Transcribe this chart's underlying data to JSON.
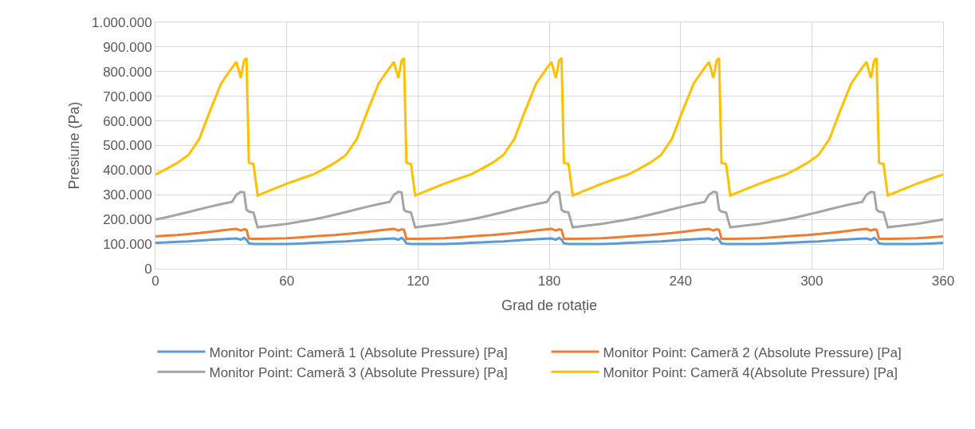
{
  "chart_data": {
    "type": "line",
    "xlabel": "Grad de rotație",
    "ylabel": "Presiune (Pa)",
    "x": [
      0,
      5,
      10,
      15,
      20,
      25,
      30,
      35,
      37,
      39,
      40.5,
      41.6,
      42.7,
      44.8,
      46.7,
      53,
      60,
      66,
      72,
      77,
      82,
      87,
      92,
      97,
      102,
      107,
      109,
      111,
      112.5,
      113.6,
      114.7,
      116.8,
      118.7,
      125,
      132,
      138,
      144,
      149,
      154,
      159,
      164,
      169,
      174,
      179,
      181,
      183,
      184.5,
      185.6,
      186.7,
      188.8,
      190.7,
      197,
      204,
      210,
      216,
      221,
      226,
      231,
      236,
      241,
      246,
      251,
      253,
      255,
      256.5,
      257.6,
      258.7,
      260.8,
      262.7,
      269,
      276,
      282,
      288,
      293,
      298,
      303,
      308,
      313,
      318,
      323,
      325,
      327,
      328.5,
      329.6,
      330.7,
      332.8,
      334.7,
      341,
      348,
      354,
      360
    ],
    "series": [
      {
        "name": "Monitor Point: Cameră 1 (Absolute Pressure) [Pa]",
        "color": "#5b9bd5",
        "values": [
          105000,
          107000,
          109000,
          111000,
          114000,
          117000,
          120000,
          122000,
          123000,
          118000,
          125000,
          118000,
          103000,
          100000,
          100000,
          100000,
          100000,
          102000,
          105000,
          107000,
          109000,
          111000,
          114000,
          117000,
          120000,
          122000,
          123000,
          118000,
          125000,
          118000,
          103000,
          100000,
          100000,
          100000,
          100000,
          102000,
          105000,
          107000,
          109000,
          111000,
          114000,
          117000,
          120000,
          122000,
          123000,
          118000,
          125000,
          118000,
          103000,
          100000,
          100000,
          100000,
          100000,
          102000,
          105000,
          107000,
          109000,
          111000,
          114000,
          117000,
          120000,
          122000,
          123000,
          118000,
          125000,
          118000,
          103000,
          100000,
          100000,
          100000,
          100000,
          102000,
          105000,
          107000,
          109000,
          111000,
          114000,
          117000,
          120000,
          122000,
          123000,
          118000,
          125000,
          118000,
          103000,
          100000,
          100000,
          100000,
          100000,
          102000,
          105000
        ]
      },
      {
        "name": "Monitor Point: Cameră 2 (Absolute Pressure) [Pa]",
        "color": "#ed7d31",
        "values": [
          131000,
          134000,
          137000,
          141000,
          145000,
          150000,
          155000,
          160000,
          162000,
          155000,
          160000,
          158000,
          122000,
          121000,
          121000,
          122000,
          124000,
          127000,
          131000,
          134000,
          137000,
          141000,
          145000,
          150000,
          155000,
          160000,
          162000,
          155000,
          160000,
          158000,
          122000,
          121000,
          121000,
          122000,
          124000,
          127000,
          131000,
          134000,
          137000,
          141000,
          145000,
          150000,
          155000,
          160000,
          162000,
          155000,
          160000,
          158000,
          122000,
          121000,
          121000,
          122000,
          124000,
          127000,
          131000,
          134000,
          137000,
          141000,
          145000,
          150000,
          155000,
          160000,
          162000,
          155000,
          160000,
          158000,
          122000,
          121000,
          121000,
          122000,
          124000,
          127000,
          131000,
          134000,
          137000,
          141000,
          145000,
          150000,
          155000,
          160000,
          162000,
          155000,
          160000,
          158000,
          122000,
          121000,
          121000,
          122000,
          124000,
          127000,
          131000
        ]
      },
      {
        "name": "Monitor Point: Cameră 3 (Absolute Pressure) [Pa]",
        "color": "#a5a5a5",
        "values": [
          200000,
          209000,
          219000,
          230000,
          241000,
          252000,
          262000,
          271000,
          300000,
          312000,
          310000,
          240000,
          232000,
          228000,
          168000,
          175000,
          182000,
          191000,
          200000,
          209000,
          219000,
          230000,
          241000,
          252000,
          262000,
          271000,
          300000,
          312000,
          310000,
          240000,
          232000,
          228000,
          168000,
          175000,
          182000,
          191000,
          200000,
          209000,
          219000,
          230000,
          241000,
          252000,
          262000,
          271000,
          300000,
          312000,
          310000,
          240000,
          232000,
          228000,
          168000,
          175000,
          182000,
          191000,
          200000,
          209000,
          219000,
          230000,
          241000,
          252000,
          262000,
          271000,
          300000,
          312000,
          310000,
          240000,
          232000,
          228000,
          168000,
          175000,
          182000,
          191000,
          200000,
          209000,
          219000,
          230000,
          241000,
          252000,
          262000,
          271000,
          300000,
          312000,
          310000,
          240000,
          232000,
          228000,
          168000,
          175000,
          182000,
          191000,
          200000
        ]
      },
      {
        "name": "Monitor Point: Cameră 4(Absolute Pressure) [Pa]",
        "color": "#ffc000",
        "values": [
          382000,
          405000,
          430000,
          461000,
          526000,
          642000,
          752000,
          816000,
          839000,
          774000,
          845000,
          855000,
          430000,
          425000,
          297000,
          320000,
          345000,
          364000,
          382000,
          405000,
          430000,
          461000,
          526000,
          642000,
          752000,
          816000,
          839000,
          774000,
          845000,
          855000,
          430000,
          425000,
          297000,
          320000,
          345000,
          364000,
          382000,
          405000,
          430000,
          461000,
          526000,
          642000,
          752000,
          816000,
          839000,
          774000,
          845000,
          855000,
          430000,
          425000,
          297000,
          320000,
          345000,
          364000,
          382000,
          405000,
          430000,
          461000,
          526000,
          642000,
          752000,
          816000,
          839000,
          774000,
          845000,
          855000,
          430000,
          425000,
          297000,
          320000,
          345000,
          364000,
          382000,
          405000,
          430000,
          461000,
          526000,
          642000,
          752000,
          816000,
          839000,
          774000,
          845000,
          855000,
          430000,
          425000,
          297000,
          320000,
          345000,
          364000,
          382000
        ]
      }
    ],
    "xlim": [
      0,
      360
    ],
    "xticks": [
      0,
      60,
      120,
      180,
      240,
      300,
      360
    ],
    "ylim": [
      0,
      1000000
    ],
    "yticks": [
      0,
      {
        "value": 100000,
        "label": "100.000"
      },
      {
        "value": 200000,
        "label": "200.000"
      },
      {
        "value": 300000,
        "label": "300.000"
      },
      {
        "value": 400000,
        "label": "400.000"
      },
      {
        "value": 500000,
        "label": "500.000"
      },
      {
        "value": 600000,
        "label": "600.000"
      },
      {
        "value": 700000,
        "label": "700.000"
      },
      {
        "value": 800000,
        "label": "800.000"
      },
      {
        "value": 900000,
        "label": "900.000"
      },
      {
        "value": 1000000,
        "label": "1.000.000"
      }
    ],
    "grid": true,
    "legend": "bottom",
    "marker": "none",
    "line_style": "solid"
  }
}
